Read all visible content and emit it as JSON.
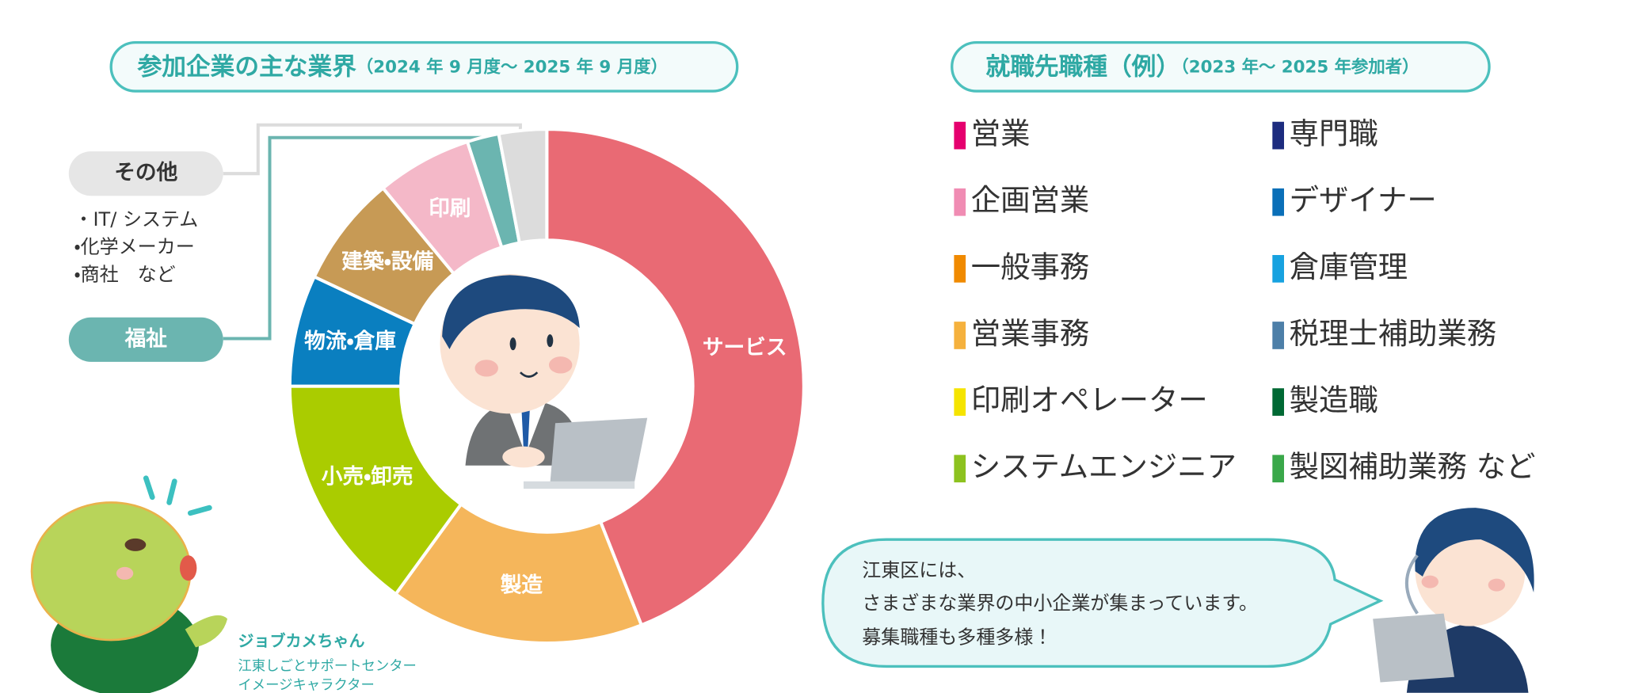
{
  "chart_data": {
    "type": "donut",
    "title": "参加企業の主な業界",
    "subtitle": "（2024 年 9 月度～ 2025 年 9 月度）",
    "categories": [
      "サービス",
      "製造",
      "小売・卸売",
      "物流・倉庫",
      "建築・設備",
      "印刷",
      "福祉",
      "その他"
    ],
    "values": [
      44,
      16,
      15,
      7,
      7,
      6,
      2,
      3
    ],
    "colors": [
      "#e96a74",
      "#f5b65b",
      "#aacc00",
      "#0a7fc0",
      "#c79a55",
      "#f4b8c8",
      "#6bb5b0",
      "#dcdcdc"
    ]
  },
  "other_examples": [
    "・IT/ システム",
    "・化学メーカー",
    "・商社　など"
  ],
  "jobs": {
    "title": "就職先職種（例）",
    "subtitle": "（2023 年～ 2025 年参加者）",
    "items": [
      {
        "label": "営業",
        "color": "#e5006e"
      },
      {
        "label": "企画営業",
        "color": "#f08cb3"
      },
      {
        "label": "一般事務",
        "color": "#f08a00"
      },
      {
        "label": "営業事務",
        "color": "#f5b13d"
      },
      {
        "label": "印刷オペレーター",
        "color": "#f5e400"
      },
      {
        "label": "システムエンジニア",
        "color": "#8dc21f"
      },
      {
        "label": "専門職",
        "color": "#1d2c7f"
      },
      {
        "label": "デザイナー",
        "color": "#0a6fb8"
      },
      {
        "label": "倉庫管理",
        "color": "#17a2e0"
      },
      {
        "label": "税理士補助業務",
        "color": "#4d7fa8"
      },
      {
        "label": "製造職",
        "color": "#006934"
      },
      {
        "label": "製図補助業務 など",
        "color": "#3aa84a"
      }
    ]
  },
  "bubble": [
    "江東区には、",
    "さまざまな業界の中小企業が集まっています。",
    "募集職種も多種多様！"
  ],
  "character": {
    "name": "ジョブカメちゃん",
    "org": "江東しごとサポートセンター",
    "role": "イメージキャラクター"
  }
}
